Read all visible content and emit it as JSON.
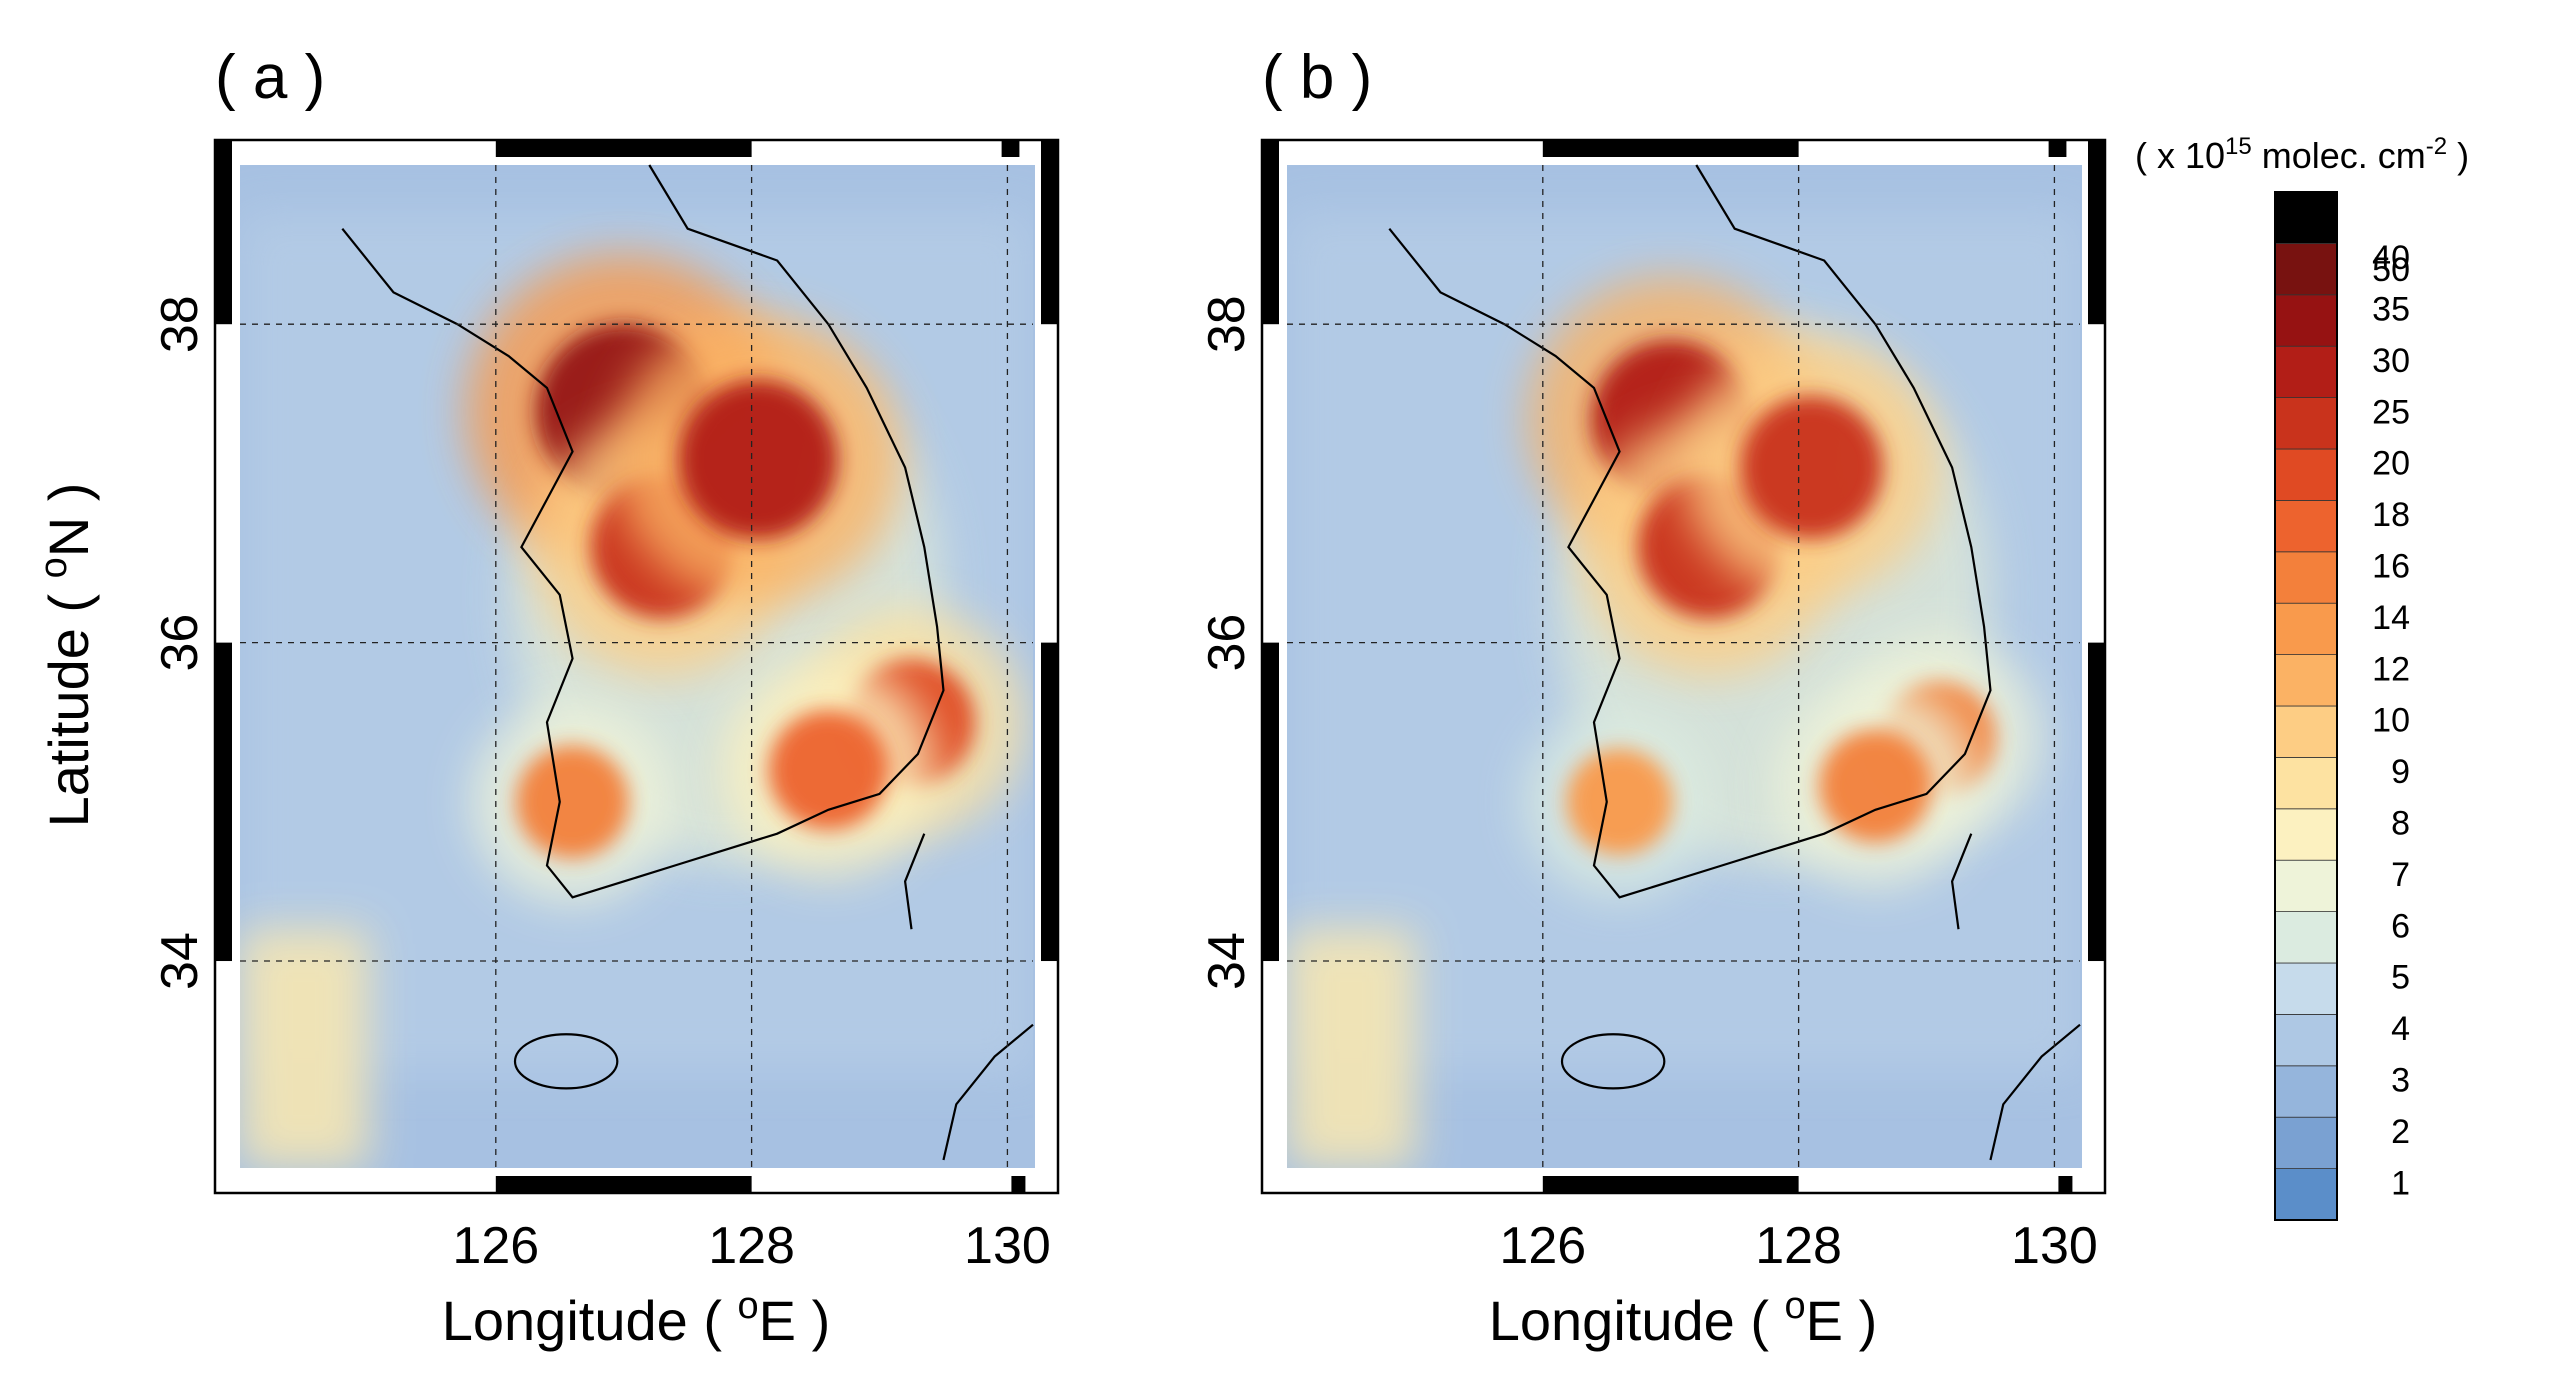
{
  "panels": [
    {
      "id": "a",
      "label": "( a )"
    },
    {
      "id": "b",
      "label": "( b )"
    }
  ],
  "axes": {
    "xlabel_main": "Longitude ( ",
    "xlabel_sup": "o",
    "xlabel_end": "E )",
    "ylabel_main": "Latitude ( ",
    "ylabel_sup": "o",
    "ylabel_end": "N )",
    "x_ticks": [
      "126",
      "128",
      "130"
    ],
    "y_ticks": [
      "38",
      "36",
      "34"
    ],
    "x_range": [
      124.0,
      130.2
    ],
    "y_range": [
      32.7,
      39.0
    ]
  },
  "colorbar": {
    "unit_open": "( x 10",
    "unit_exp": "15",
    "unit_mid": " molec. cm",
    "unit_exp2": "-2",
    "unit_close": " )",
    "levels": [
      "1",
      "2",
      "3",
      "4",
      "5",
      "6",
      "7",
      "8",
      "9",
      "10",
      "12",
      "14",
      "16",
      "18",
      "20",
      "25",
      "30",
      "35",
      "40",
      "50"
    ],
    "colors": [
      "#5b8ec9",
      "#7aa1d2",
      "#95b5dc",
      "#aec8e4",
      "#c6dbeb",
      "#dbebe0",
      "#eef3d9",
      "#fcf1c0",
      "#fde2a1",
      "#fdcd84",
      "#fbb264",
      "#f99a4c",
      "#f3803b",
      "#ed632e",
      "#e04a23",
      "#c9331c",
      "#b21e17",
      "#961212",
      "#781210",
      "#000000"
    ]
  },
  "map_colors": {
    "background_blue": "#a7c1e2",
    "sea_light": "#bcd2e8",
    "haze_yellow": "#f6e6b2",
    "hot_red": "#b52a18"
  },
  "chart_data": [
    {
      "type": "heatmap",
      "title": "( a )",
      "xlabel": "Longitude ( oE )",
      "ylabel": "Latitude ( oN )",
      "xlim": [
        124.0,
        130.2
      ],
      "ylim": [
        32.7,
        39.0
      ],
      "variable_unit": "x 10^15 molec. cm^-2",
      "hotspots": [
        {
          "lon": 127.0,
          "lat": 37.45,
          "value": 35
        },
        {
          "lon": 127.3,
          "lat": 36.6,
          "value": 25
        },
        {
          "lon": 128.05,
          "lat": 37.15,
          "value": 30
        },
        {
          "lon": 126.6,
          "lat": 35.0,
          "value": 16
        },
        {
          "lon": 129.25,
          "lat": 35.5,
          "value": 20
        },
        {
          "lon": 128.6,
          "lat": 35.2,
          "value": 18
        }
      ]
    },
    {
      "type": "heatmap",
      "title": "( b )",
      "xlabel": "Longitude ( oE )",
      "ylabel": "Latitude ( oN )",
      "xlim": [
        124.0,
        130.2
      ],
      "ylim": [
        32.7,
        39.0
      ],
      "variable_unit": "x 10^15 molec. cm^-2",
      "hotspots": [
        {
          "lon": 127.0,
          "lat": 37.4,
          "value": 30
        },
        {
          "lon": 127.3,
          "lat": 36.6,
          "value": 25
        },
        {
          "lon": 128.1,
          "lat": 37.1,
          "value": 25
        },
        {
          "lon": 126.6,
          "lat": 35.0,
          "value": 14
        },
        {
          "lon": 129.1,
          "lat": 35.4,
          "value": 16
        },
        {
          "lon": 128.6,
          "lat": 35.1,
          "value": 16
        }
      ]
    }
  ]
}
